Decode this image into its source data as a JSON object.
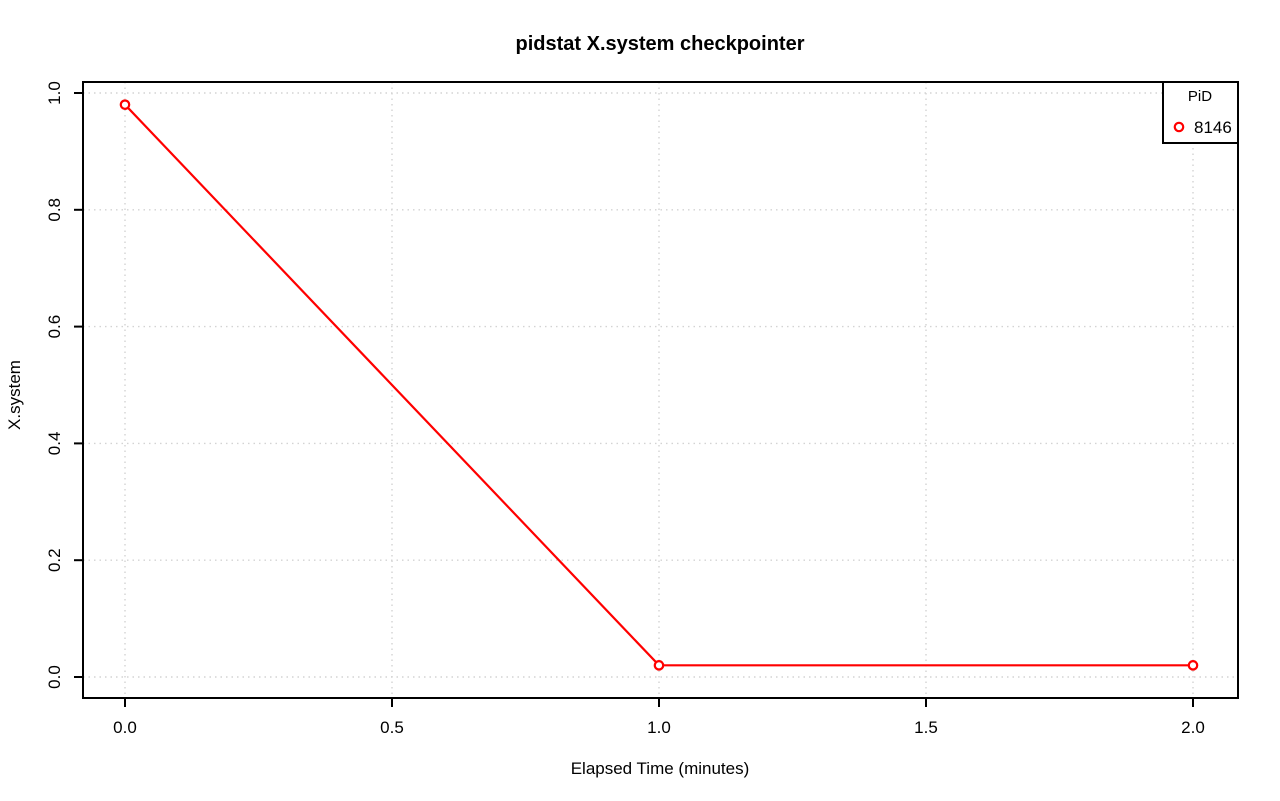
{
  "chart_data": {
    "type": "line",
    "title": "pidstat X.system checkpointer",
    "xlabel": "Elapsed Time (minutes)",
    "ylabel": "X.system",
    "x": [
      0.0,
      1.0,
      2.0
    ],
    "series": [
      {
        "name": "8146",
        "values": [
          0.98,
          0.02,
          0.02
        ],
        "color": "#ff0000",
        "marker": "open-circle"
      }
    ],
    "xticks": [
      0.0,
      0.5,
      1.0,
      1.5,
      2.0
    ],
    "xtick_labels": [
      "0.0",
      "0.5",
      "1.0",
      "1.5",
      "2.0"
    ],
    "yticks": [
      0.0,
      0.2,
      0.4,
      0.6,
      0.8,
      1.0
    ],
    "ytick_labels": [
      "0.0",
      "0.2",
      "0.4",
      "0.6",
      "0.8",
      "1.0"
    ],
    "xlim": [
      0.0,
      2.0
    ],
    "ylim": [
      0.0,
      1.0
    ],
    "grid": "dotted",
    "grid_color": "#d3d3d3",
    "background_color": "#ffffff",
    "axis_color": "#000000",
    "legend": {
      "title": "PiD",
      "position": "top-right",
      "entries": [
        {
          "label": "8146",
          "color": "#ff0000",
          "marker": "open-circle"
        }
      ]
    }
  }
}
